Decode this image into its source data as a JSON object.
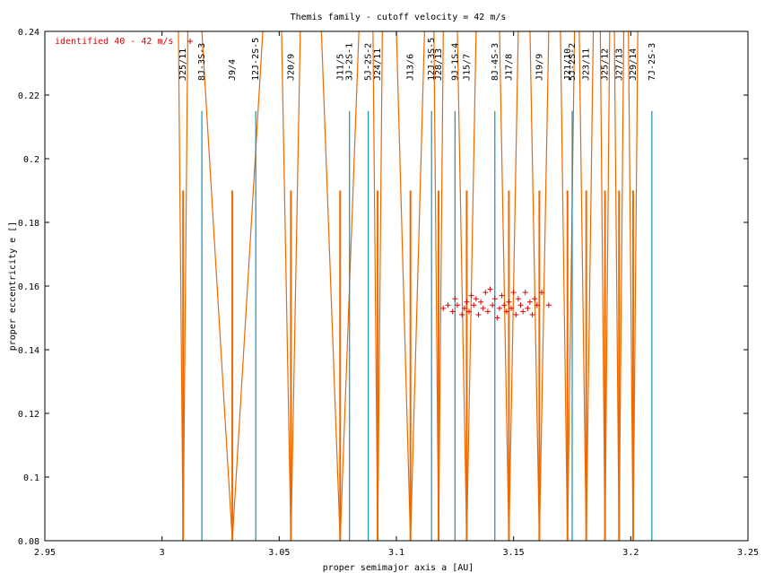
{
  "chart_data": {
    "type": "scatter",
    "title": "Themis family - cutoff velocity = 42 m/s",
    "xlabel": "proper semimajor axis a [AU]",
    "ylabel": "proper eccentricity e []",
    "xlim": [
      2.95,
      3.25
    ],
    "ylim": [
      0.08,
      0.24
    ],
    "x_ticks": [
      "2.95",
      "3",
      "3.05",
      "3.1",
      "3.15",
      "3.2",
      "3.25"
    ],
    "y_ticks": [
      "0.08",
      "0.1",
      "0.12",
      "0.14",
      "0.16",
      "0.18",
      "0.2",
      "0.22",
      "0.24"
    ],
    "grid": false,
    "legend_position": "top-left",
    "legend": "identified 40 - 42 m/s",
    "colors": {
      "points": "#e00000",
      "resonance_two_body": "#ee6a00",
      "resonance_three_body": "#1a8fb4"
    },
    "series": [
      {
        "name": "identified 40 - 42 m/s",
        "points": [
          [
            3.12,
            0.153
          ],
          [
            3.122,
            0.154
          ],
          [
            3.124,
            0.152
          ],
          [
            3.125,
            0.156
          ],
          [
            3.126,
            0.154
          ],
          [
            3.128,
            0.151
          ],
          [
            3.129,
            0.153
          ],
          [
            3.13,
            0.155
          ],
          [
            3.131,
            0.152
          ],
          [
            3.132,
            0.157
          ],
          [
            3.133,
            0.154
          ],
          [
            3.134,
            0.156
          ],
          [
            3.135,
            0.151
          ],
          [
            3.136,
            0.155
          ],
          [
            3.137,
            0.153
          ],
          [
            3.138,
            0.158
          ],
          [
            3.139,
            0.152
          ],
          [
            3.14,
            0.159
          ],
          [
            3.141,
            0.154
          ],
          [
            3.142,
            0.156
          ],
          [
            3.143,
            0.15
          ],
          [
            3.144,
            0.153
          ],
          [
            3.145,
            0.157
          ],
          [
            3.146,
            0.154
          ],
          [
            3.147,
            0.152
          ],
          [
            3.148,
            0.155
          ],
          [
            3.149,
            0.153
          ],
          [
            3.15,
            0.158
          ],
          [
            3.151,
            0.151
          ],
          [
            3.152,
            0.156
          ],
          [
            3.153,
            0.154
          ],
          [
            3.154,
            0.152
          ],
          [
            3.155,
            0.158
          ],
          [
            3.156,
            0.153
          ],
          [
            3.157,
            0.155
          ],
          [
            3.158,
            0.151
          ],
          [
            3.159,
            0.156
          ],
          [
            3.16,
            0.154
          ],
          [
            3.162,
            0.158
          ],
          [
            3.165,
            0.154
          ]
        ]
      }
    ],
    "resonances": [
      {
        "label": "J25/11",
        "a": 3.009,
        "type": "two-body",
        "half_width": 0.002
      },
      {
        "label": "8J-3S-3",
        "a": 3.017,
        "type": "three-body"
      },
      {
        "label": "J9/4",
        "a": 3.03,
        "type": "two-body",
        "half_width": 0.013
      },
      {
        "label": "12J-2S-5",
        "a": 3.04,
        "type": "three-body"
      },
      {
        "label": "J20/9",
        "a": 3.055,
        "type": "two-body",
        "half_width": 0.004
      },
      {
        "label": "J11/5",
        "a": 3.076,
        "type": "two-body",
        "half_width": 0.008
      },
      {
        "label": "3J-2S-1",
        "a": 3.08,
        "type": "three-body"
      },
      {
        "label": "5J-2S-2",
        "a": 3.088,
        "type": "three-body"
      },
      {
        "label": "J24/11",
        "a": 3.092,
        "type": "two-body",
        "half_width": 0.002
      },
      {
        "label": "J13/6",
        "a": 3.106,
        "type": "two-body",
        "half_width": 0.006
      },
      {
        "label": "12J-3S-5",
        "a": 3.115,
        "type": "three-body"
      },
      {
        "label": "J28/13",
        "a": 3.118,
        "type": "two-body",
        "half_width": 0.002
      },
      {
        "label": "9J-1S-4",
        "a": 3.125,
        "type": "three-body"
      },
      {
        "label": "J15/7",
        "a": 3.13,
        "type": "two-body",
        "half_width": 0.004
      },
      {
        "label": "8J-4S-3",
        "a": 3.142,
        "type": "three-body"
      },
      {
        "label": "J17/8",
        "a": 3.148,
        "type": "two-body",
        "half_width": 0.004
      },
      {
        "label": "J19/9",
        "a": 3.161,
        "type": "two-body",
        "half_width": 0.004
      },
      {
        "label": "J21/10",
        "a": 3.173,
        "type": "two-body",
        "half_width": 0.003
      },
      {
        "label": "5J-2S-2",
        "a": 3.175,
        "type": "three-body"
      },
      {
        "label": "J23/11",
        "a": 3.181,
        "type": "two-body",
        "half_width": 0.003
      },
      {
        "label": "J25/12",
        "a": 3.189,
        "type": "two-body",
        "half_width": 0.002
      },
      {
        "label": "J27/13",
        "a": 3.195,
        "type": "two-body",
        "half_width": 0.002
      },
      {
        "label": "J29/14",
        "a": 3.201,
        "type": "two-body",
        "half_width": 0.002
      },
      {
        "label": "7J-2S-3",
        "a": 3.209,
        "type": "three-body"
      }
    ]
  }
}
